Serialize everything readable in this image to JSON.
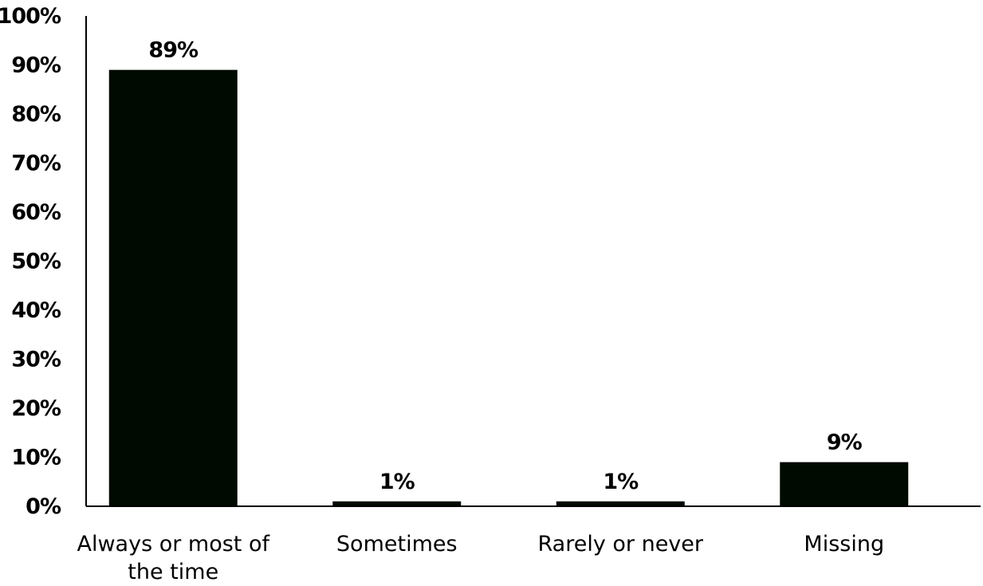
{
  "chart_data": {
    "type": "bar",
    "title": "",
    "xlabel": "",
    "ylabel": "",
    "categories": [
      [
        "Always or most of",
        "the time"
      ],
      [
        "Sometimes"
      ],
      [
        "Rarely or never"
      ],
      [
        "Missing"
      ]
    ],
    "values": [
      89,
      1,
      1,
      9
    ],
    "data_labels": [
      "89%",
      "1%",
      "1%",
      "9%"
    ],
    "ylim": [
      0,
      100
    ],
    "yticks": [
      0,
      10,
      20,
      30,
      40,
      50,
      60,
      70,
      80,
      90,
      100
    ],
    "ytick_labels": [
      "0%",
      "10%",
      "20%",
      "30%",
      "40%",
      "50%",
      "60%",
      "70%",
      "80%",
      "90%",
      "100%"
    ],
    "grid": false,
    "legend": "none",
    "colors": {
      "bar": "#000a00",
      "axis": "#000000",
      "background": "#ffffff"
    }
  }
}
